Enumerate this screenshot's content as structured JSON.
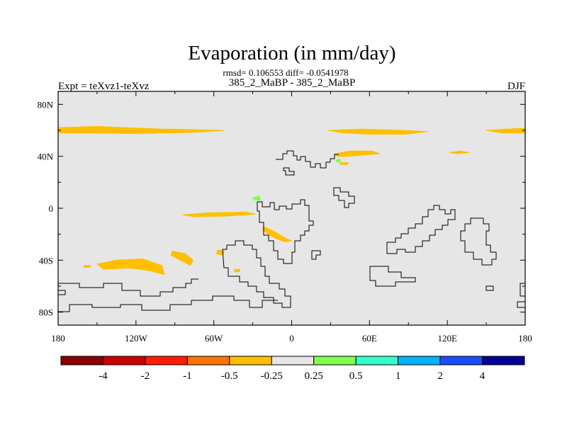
{
  "chart_data": {
    "type": "heatmap",
    "title": "Evaporation (in mm/day)",
    "stats_line": "rmsd= 0.106553 diff= -0.0541978",
    "subtitle_center": "385_2_MaBP - 385_2_MaBP",
    "subtitle_left": "Expt = teXvz1-teXvz",
    "subtitle_right": "DJF",
    "xlim": [
      -180,
      180
    ],
    "ylim": [
      -90,
      90
    ],
    "x_ticks": [
      {
        "value": -180,
        "label": "180"
      },
      {
        "value": -120,
        "label": "120W"
      },
      {
        "value": -60,
        "label": "60W"
      },
      {
        "value": 0,
        "label": "0"
      },
      {
        "value": 60,
        "label": "60E"
      },
      {
        "value": 120,
        "label": "120E"
      },
      {
        "value": 180,
        "label": "180"
      }
    ],
    "y_ticks": [
      {
        "value": 80,
        "label": "80N"
      },
      {
        "value": 40,
        "label": "40N"
      },
      {
        "value": 0,
        "label": "0"
      },
      {
        "value": -40,
        "label": "40S"
      },
      {
        "value": -80,
        "label": "80S"
      }
    ],
    "background_color": "#e6e6e6",
    "colorbar": {
      "colors": [
        "#8b0000",
        "#cc0000",
        "#ff1a00",
        "#ff7300",
        "#ffbf00",
        "#e6e6e6",
        "#80ff4d",
        "#33ffcc",
        "#00b3ff",
        "#1a4dff",
        "#000099"
      ],
      "labels": [
        "-4",
        "-2",
        "-1",
        "-0.5",
        "-0.25",
        "0.25",
        "0.5",
        "1",
        "2",
        "4"
      ]
    },
    "anomaly_regions": [
      {
        "name": "north-atlantic-pacific-band",
        "color": "#ffbf00",
        "level": "-0.25 to -0.5",
        "outline": [
          [
            -180,
            62
          ],
          [
            -150,
            63
          ],
          [
            -100,
            61
          ],
          [
            -70,
            60.5
          ],
          [
            -52,
            60
          ],
          [
            -75,
            58.5
          ],
          [
            -120,
            57.5
          ],
          [
            -160,
            58
          ],
          [
            -180,
            58
          ]
        ]
      },
      {
        "name": "central-asia-band",
        "color": "#ffbf00",
        "level": "-0.25 to -0.5",
        "outline": [
          [
            28,
            60
          ],
          [
            55,
            61
          ],
          [
            85,
            60
          ],
          [
            105,
            59
          ],
          [
            88,
            57
          ],
          [
            60,
            57
          ],
          [
            40,
            58
          ]
        ]
      },
      {
        "name": "east-asia-band-east",
        "color": "#ffbf00",
        "level": "-0.25 to -0.5",
        "outline": [
          [
            150,
            60
          ],
          [
            165,
            61
          ],
          [
            180,
            61.5
          ],
          [
            180,
            58
          ],
          [
            162,
            58
          ]
        ]
      },
      {
        "name": "mediterranean-cluster",
        "color": "#ffbf00",
        "level": "-0.25 to -0.5",
        "outline": [
          [
            33,
            42
          ],
          [
            45,
            44
          ],
          [
            62,
            44
          ],
          [
            68,
            42
          ],
          [
            55,
            41
          ],
          [
            43,
            40
          ],
          [
            35,
            40
          ]
        ]
      },
      {
        "name": "mediterranean-small",
        "color": "#ffbf00",
        "level": "-0.25 to -0.5",
        "outline": [
          [
            37,
            35
          ],
          [
            44,
            35
          ],
          [
            42,
            33.5
          ],
          [
            37,
            34
          ]
        ]
      },
      {
        "name": "pacific-east-small",
        "color": "#ffbf00",
        "level": "-0.25 to -0.5",
        "outline": [
          [
            122,
            43
          ],
          [
            130,
            44
          ],
          [
            137,
            43
          ],
          [
            128,
            42
          ]
        ]
      },
      {
        "name": "equatorial-atlantic-band",
        "color": "#ffbf00",
        "level": "-0.25 to -0.5",
        "outline": [
          [
            -84,
            -5
          ],
          [
            -63,
            -3.5
          ],
          [
            -35,
            -3
          ],
          [
            -28,
            -4.5
          ],
          [
            -50,
            -6
          ],
          [
            -75,
            -6.5
          ]
        ]
      },
      {
        "name": "southwest-indian",
        "color": "#ffbf00",
        "level": "-0.25 to -0.5",
        "outline": [
          [
            -22,
            -14
          ],
          [
            -15,
            -17
          ],
          [
            -5,
            -23
          ],
          [
            0,
            -25
          ],
          [
            -5,
            -26
          ],
          [
            -15,
            -22
          ],
          [
            -22,
            -17
          ]
        ]
      },
      {
        "name": "south-pacific-large",
        "color": "#ffbf00",
        "level": "-0.25 to -0.5",
        "outline": [
          [
            -150,
            -43
          ],
          [
            -135,
            -40
          ],
          [
            -115,
            -39
          ],
          [
            -100,
            -44
          ],
          [
            -98,
            -51
          ],
          [
            -110,
            -48
          ],
          [
            -125,
            -46
          ],
          [
            -145,
            -47
          ]
        ]
      },
      {
        "name": "south-pacific-middle",
        "color": "#ffbf00",
        "level": "-0.25 to -0.5",
        "outline": [
          [
            -92,
            -33
          ],
          [
            -82,
            -35
          ],
          [
            -76,
            -40
          ],
          [
            -78,
            -44
          ],
          [
            -86,
            -40
          ],
          [
            -93,
            -36
          ]
        ]
      },
      {
        "name": "south-pacific-small-1",
        "color": "#ffbf00",
        "level": "-0.25 to -0.5",
        "outline": [
          [
            -57,
            -32
          ],
          [
            -52,
            -33
          ],
          [
            -53,
            -36
          ],
          [
            -58,
            -35
          ]
        ]
      },
      {
        "name": "south-pacific-small-2",
        "color": "#ffbf00",
        "level": "-0.25 to -0.5",
        "outline": [
          [
            -160,
            -44
          ],
          [
            -155,
            -44
          ],
          [
            -155,
            -45.5
          ],
          [
            -160,
            -45.5
          ]
        ]
      },
      {
        "name": "south-atlantic-small",
        "color": "#ffbf00",
        "level": "-0.25 to -0.5",
        "outline": [
          [
            -44,
            -47
          ],
          [
            -40,
            -47
          ],
          [
            -40,
            -49
          ],
          [
            -44,
            -49
          ]
        ]
      },
      {
        "name": "tropical-green-patch",
        "color": "#80ff4d",
        "level": "0.25 to 0.5",
        "outline": [
          [
            -30,
            8
          ],
          [
            -25,
            9.5
          ],
          [
            -24,
            6
          ],
          [
            -29,
            6.5
          ]
        ]
      },
      {
        "name": "mediterranean-green-patch",
        "color": "#80ff4d",
        "level": "0.25 to 0.5",
        "outline": [
          [
            34,
            37
          ],
          [
            37,
            38
          ],
          [
            38,
            36
          ],
          [
            35,
            35.5
          ]
        ]
      }
    ]
  }
}
